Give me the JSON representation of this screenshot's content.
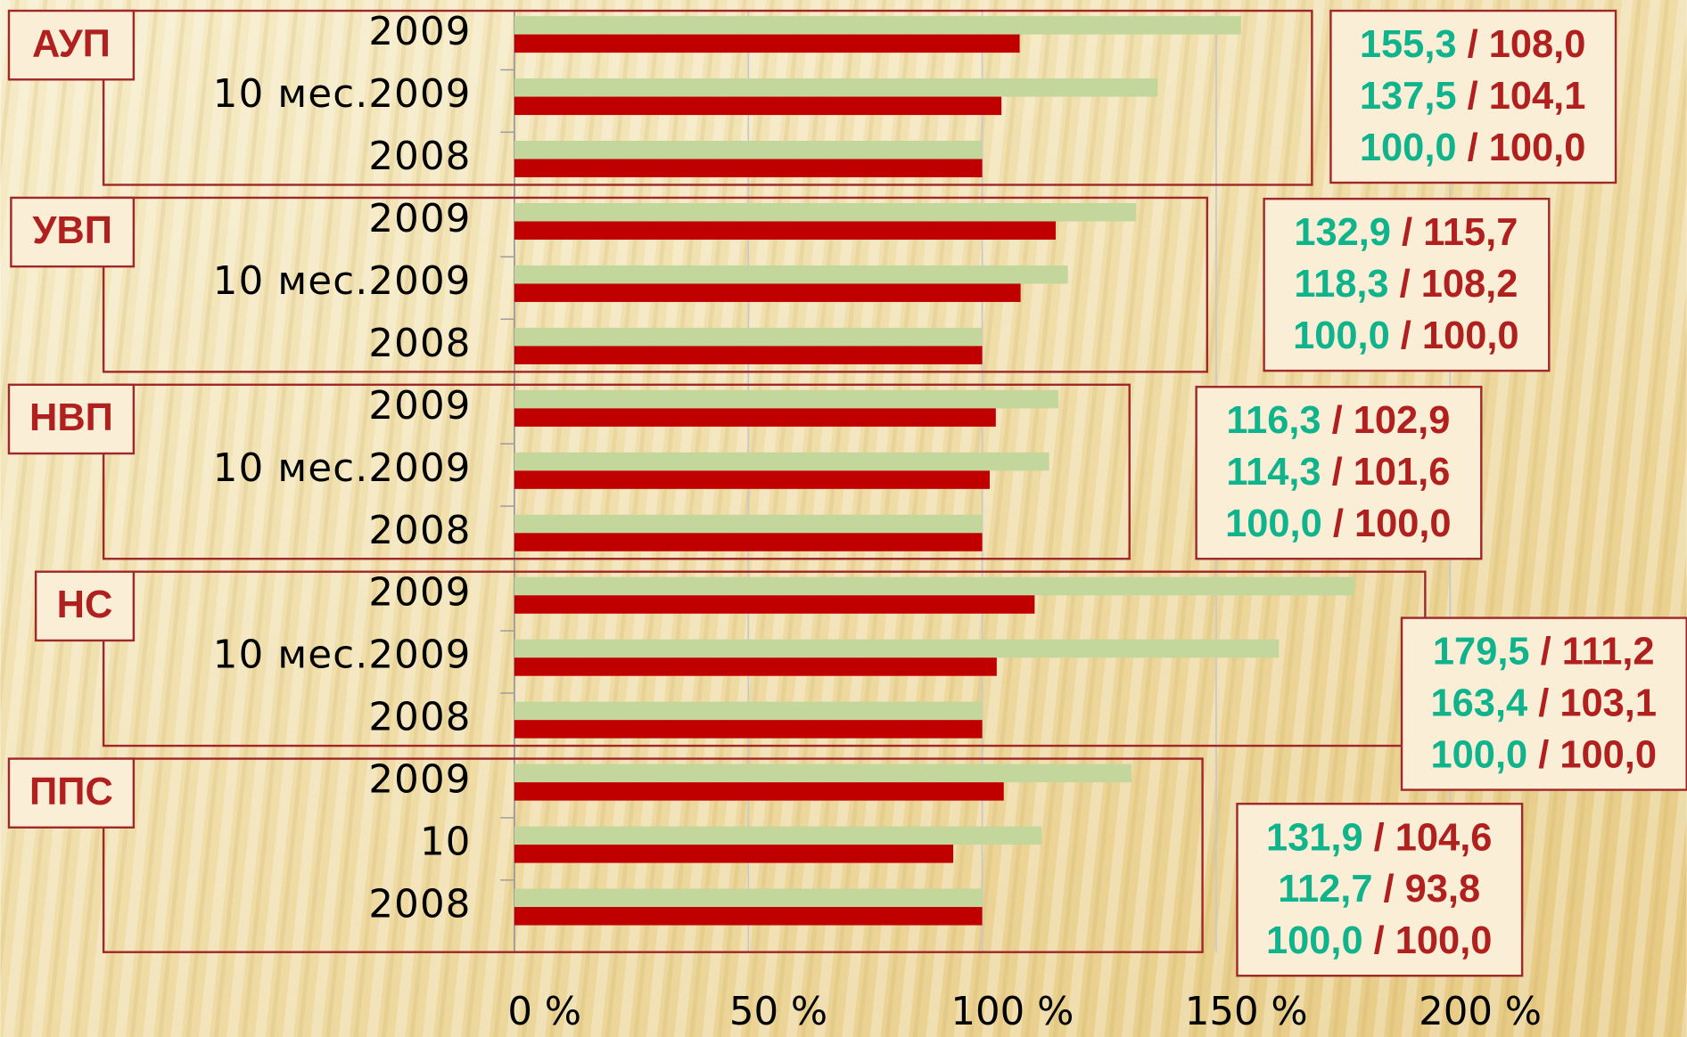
{
  "chart_data": {
    "type": "bar",
    "xlim": [
      0,
      200
    ],
    "xticks": [
      {
        "value": 0,
        "label": "0 %"
      },
      {
        "value": 50,
        "label": "50 %"
      },
      {
        "value": 100,
        "label": "100 %"
      },
      {
        "value": 150,
        "label": "150 %"
      },
      {
        "value": 200,
        "label": "200 %"
      }
    ],
    "grid": true,
    "label_separator": " / ",
    "groups": [
      {
        "name": "АУП",
        "categories": [
          "2009",
          "10 мес.2009",
          "2008"
        ],
        "series": [
          {
            "color": "#c3d69b",
            "label_color": "#10b48c",
            "values": [
              155.3,
              137.5,
              100.0
            ],
            "value_labels": [
              "155,3",
              "137,5",
              "100,0"
            ]
          },
          {
            "color": "#c00000",
            "label_color": "#b0201e",
            "values": [
              108.0,
              104.1,
              100.0
            ],
            "value_labels": [
              "108,0",
              "104,1",
              "100,0"
            ]
          }
        ]
      },
      {
        "name": "УВП",
        "categories": [
          "2009",
          "10 мес.2009",
          "2008"
        ],
        "series": [
          {
            "color": "#c3d69b",
            "label_color": "#10b48c",
            "values": [
              132.9,
              118.3,
              100.0
            ],
            "value_labels": [
              "132,9",
              "118,3",
              "100,0"
            ]
          },
          {
            "color": "#c00000",
            "label_color": "#b0201e",
            "values": [
              115.7,
              108.2,
              100.0
            ],
            "value_labels": [
              "115,7",
              "108,2",
              "100,0"
            ]
          }
        ]
      },
      {
        "name": "НВП",
        "categories": [
          "2009",
          "10 мес.2009",
          "2008"
        ],
        "series": [
          {
            "color": "#c3d69b",
            "label_color": "#10b48c",
            "values": [
              116.3,
              114.3,
              100.0
            ],
            "value_labels": [
              "116,3",
              "114,3",
              "100,0"
            ]
          },
          {
            "color": "#c00000",
            "label_color": "#b0201e",
            "values": [
              102.9,
              101.6,
              100.0
            ],
            "value_labels": [
              "102,9",
              "101,6",
              "100,0"
            ]
          }
        ]
      },
      {
        "name": "НС",
        "categories": [
          "2009",
          "10 мес.2009",
          "2008"
        ],
        "series": [
          {
            "color": "#c3d69b",
            "label_color": "#10b48c",
            "values": [
              179.5,
              163.4,
              100.0
            ],
            "value_labels": [
              "179,5",
              "163,4",
              "100,0"
            ]
          },
          {
            "color": "#c00000",
            "label_color": "#b0201e",
            "values": [
              111.2,
              103.1,
              100.0
            ],
            "value_labels": [
              "111,2",
              "103,1",
              "100,0"
            ]
          }
        ]
      },
      {
        "name": "ППС",
        "categories": [
          "2009",
          "10",
          "2008"
        ],
        "series": [
          {
            "color": "#c3d69b",
            "label_color": "#10b48c",
            "values": [
              131.9,
              112.7,
              100.0
            ],
            "value_labels": [
              "131,9",
              "112,7",
              "100,0"
            ]
          },
          {
            "color": "#c00000",
            "label_color": "#b0201e",
            "values": [
              104.6,
              93.8,
              100.0
            ],
            "value_labels": [
              "104,6",
              "93,8",
              "100,0"
            ]
          }
        ]
      }
    ]
  }
}
